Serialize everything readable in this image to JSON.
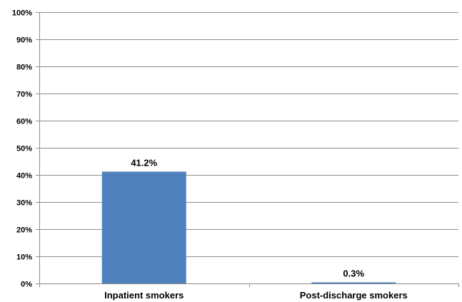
{
  "chart_data": {
    "type": "bar",
    "title": "",
    "xlabel": "",
    "ylabel": "",
    "categories": [
      "Inpatient smokers",
      "Post-discharge smokers"
    ],
    "values": [
      41.2,
      0.3
    ],
    "data_labels": [
      "41.2%",
      "0.3%"
    ],
    "ylim": [
      0,
      100
    ],
    "yticks": [
      0,
      10,
      20,
      30,
      40,
      50,
      60,
      70,
      80,
      90,
      100
    ],
    "ytick_labels": [
      "0%",
      "10%",
      "20%",
      "30%",
      "40%",
      "50%",
      "60%",
      "70%",
      "80%",
      "90%",
      "100%"
    ],
    "grid": true,
    "legend": "none",
    "colors": {
      "bar": "#4F81BD",
      "grid": "#8C8C8C",
      "axis": "#8C8C8C"
    }
  }
}
